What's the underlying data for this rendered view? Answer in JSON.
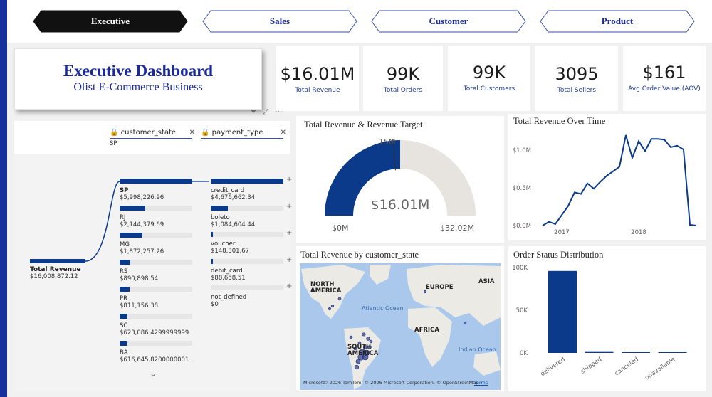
{
  "tabs": [
    {
      "label": "Executive",
      "active": true
    },
    {
      "label": "Sales",
      "active": false
    },
    {
      "label": "Customer",
      "active": false
    },
    {
      "label": "Product",
      "active": false
    }
  ],
  "header": {
    "title": "Executive Dashboard",
    "subtitle": "Olist E-Commerce Business"
  },
  "kpis": [
    {
      "value": "$16.01M",
      "label": "Total Revenue"
    },
    {
      "value": "99K",
      "label": "Total Orders"
    },
    {
      "value": "99K",
      "label": "Total Customers"
    },
    {
      "value": "3095",
      "label": "Total Sellers"
    },
    {
      "value": "$161",
      "label": "Avg Order Value (AOV)"
    }
  ],
  "colors": {
    "accent": "#17309a",
    "bar": "#0b3a8a",
    "track": "#e6e6e6",
    "gauge_bg": "#e7e3df"
  },
  "decomp_tree": {
    "filters": [
      {
        "field": "customer_state",
        "selected": "SP"
      },
      {
        "field": "payment_type",
        "selected": ""
      }
    ],
    "root": {
      "label": "Total Revenue",
      "value": "$16,008,872.12"
    },
    "level1": [
      {
        "label": "SP",
        "value": "$5,998,226.96",
        "fraction": 1.0,
        "selected": true
      },
      {
        "label": "RJ",
        "value": "$2,144,379.69",
        "fraction": 0.357
      },
      {
        "label": "MG",
        "value": "$1,872,257.26",
        "fraction": 0.312
      },
      {
        "label": "RS",
        "value": "$890,898.54",
        "fraction": 0.148
      },
      {
        "label": "PR",
        "value": "$811,156.38",
        "fraction": 0.135
      },
      {
        "label": "SC",
        "value": "$623,086.4299999999",
        "fraction": 0.104
      },
      {
        "label": "BA",
        "value": "$616,645.8200000001",
        "fraction": 0.103
      }
    ],
    "level2": [
      {
        "label": "credit_card",
        "value": "$4,676,662.34",
        "fraction": 1.0
      },
      {
        "label": "boleto",
        "value": "$1,084,604.44",
        "fraction": 0.232
      },
      {
        "label": "voucher",
        "value": "$148,301.67",
        "fraction": 0.032
      },
      {
        "label": "debit_card",
        "value": "$88,658.51",
        "fraction": 0.019
      },
      {
        "label": "not_defined",
        "value": "$0",
        "fraction": 0.0
      }
    ]
  },
  "gauge": {
    "title": "Total Revenue & Revenue Target",
    "value_label": "$16.01M",
    "target_label": "15M",
    "min_label": "$0M",
    "max_label": "$32.02M",
    "value_fraction": 0.5
  },
  "map": {
    "title": "Total Revenue by customer_state",
    "labels": [
      "NORTH AMERICA",
      "EUROPE",
      "ASIA",
      "AFRICA",
      "SOUTH AMERICA",
      "Atlantic Ocean",
      "Indian Ocean"
    ],
    "attribution": "© 2026 TomTom, © 2026 Microsoft Corporation, © OpenStreetMap",
    "terms": "Terms",
    "logo": "Microsoft"
  },
  "chart_data": [
    {
      "type": "line",
      "title": "Total Revenue Over Time",
      "x_ticks": [
        "2017",
        "2018"
      ],
      "y_ticks": [
        "$1.0M",
        "$0.5M",
        "$0.0M"
      ],
      "ylim": [
        0,
        1.2
      ],
      "series": [
        {
          "values": [
            0.0,
            0.05,
            0.02,
            0.14,
            0.26,
            0.44,
            0.42,
            0.56,
            0.49,
            0.58,
            0.66,
            0.72,
            0.78,
            1.2,
            0.9,
            1.12,
            0.99,
            1.15,
            1.15,
            1.14,
            1.04,
            1.06,
            1.01,
            0.01,
            0.0
          ]
        }
      ],
      "grid": false
    },
    {
      "type": "bar",
      "title": "Order Status Distribution",
      "categories": [
        "delivered",
        "shipped",
        "canceled",
        "unavailable"
      ],
      "values": [
        96000,
        1100,
        620,
        610
      ],
      "y_ticks": [
        "100K",
        "50K",
        "0K"
      ],
      "ylim": [
        0,
        100000
      ]
    }
  ]
}
